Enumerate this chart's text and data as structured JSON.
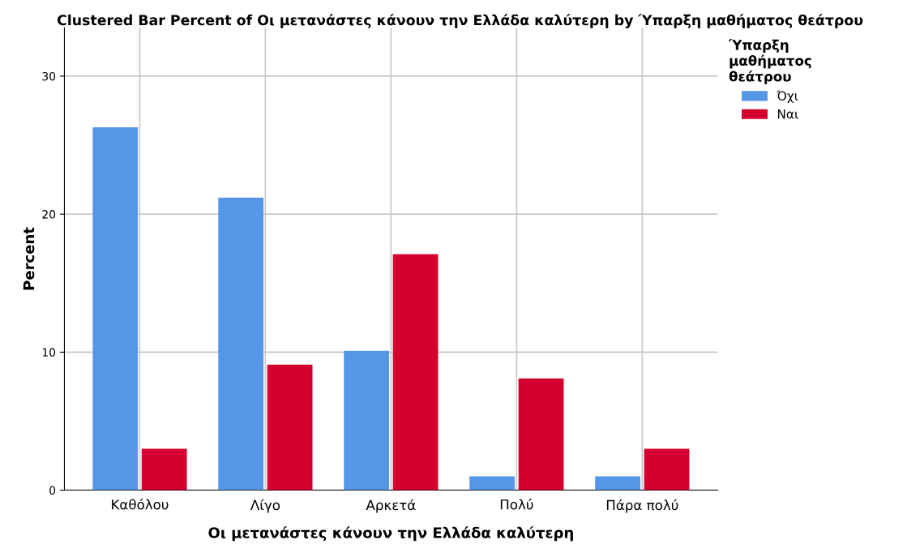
{
  "chart_data": {
    "type": "bar",
    "title": "Clustered Bar Percent of Οι μετανάστες κάνουν την Ελλάδα καλύτερη by Ύπαρξη μαθήματος θεάτρου",
    "xlabel": "Οι μετανάστες κάνουν την Ελλάδα καλύτερη",
    "ylabel": "Percent",
    "legend_title": "Ύπαρξη\nμαθήματος\nθεάτρου",
    "categories": [
      "Καθόλου",
      "Λίγο",
      "Αρκετά",
      "Πολύ",
      "Πάρα πολύ"
    ],
    "series": [
      {
        "name": "Όχι",
        "color": "#5596e6",
        "values": [
          26.3,
          21.2,
          10.1,
          1.0,
          1.0
        ]
      },
      {
        "name": "Ναι",
        "color": "#d5002f",
        "values": [
          3.0,
          9.1,
          17.1,
          8.1,
          3.0
        ]
      }
    ],
    "ylim": [
      0,
      33.5
    ],
    "yticks": [
      0,
      10,
      20,
      30
    ],
    "grid": true,
    "legend": "top right"
  }
}
